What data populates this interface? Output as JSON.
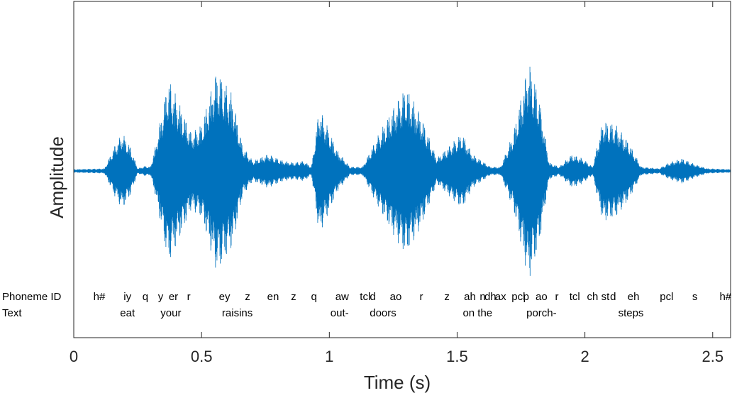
{
  "chart_data": {
    "type": "line",
    "xlabel": "Time (s)",
    "ylabel": "Amplitude",
    "xlim": [
      0,
      2.57
    ],
    "ylim": [
      -1,
      1
    ],
    "grid": false,
    "x_ticks": [
      {
        "value": 0,
        "label": "0"
      },
      {
        "value": 0.5,
        "label": "0.5"
      },
      {
        "value": 1,
        "label": "1"
      },
      {
        "value": 1.5,
        "label": "1.5"
      },
      {
        "value": 2,
        "label": "2"
      },
      {
        "value": 2.5,
        "label": "2.5"
      }
    ],
    "series": [
      {
        "color": "#0072BD",
        "envelope": [
          {
            "t": 0.0,
            "a": 0.02
          },
          {
            "t": 0.12,
            "a": 0.03
          },
          {
            "t": 0.16,
            "a": 0.3
          },
          {
            "t": 0.19,
            "a": 0.45
          },
          {
            "t": 0.22,
            "a": 0.3
          },
          {
            "t": 0.25,
            "a": 0.03
          },
          {
            "t": 0.28,
            "a": 0.06
          },
          {
            "t": 0.3,
            "a": 0.05
          },
          {
            "t": 0.32,
            "a": 0.3
          },
          {
            "t": 0.37,
            "a": 1.1
          },
          {
            "t": 0.42,
            "a": 0.75
          },
          {
            "t": 0.46,
            "a": 0.45
          },
          {
            "t": 0.5,
            "a": 0.55
          },
          {
            "t": 0.56,
            "a": 1.2
          },
          {
            "t": 0.62,
            "a": 0.9
          },
          {
            "t": 0.66,
            "a": 0.3
          },
          {
            "t": 0.7,
            "a": 0.12
          },
          {
            "t": 0.76,
            "a": 0.2
          },
          {
            "t": 0.82,
            "a": 0.12
          },
          {
            "t": 0.86,
            "a": 0.1
          },
          {
            "t": 0.9,
            "a": 0.12
          },
          {
            "t": 0.93,
            "a": 0.05
          },
          {
            "t": 0.96,
            "a": 0.75
          },
          {
            "t": 0.99,
            "a": 0.55
          },
          {
            "t": 1.03,
            "a": 0.25
          },
          {
            "t": 1.08,
            "a": 0.05
          },
          {
            "t": 1.13,
            "a": 0.05
          },
          {
            "t": 1.17,
            "a": 0.3
          },
          {
            "t": 1.24,
            "a": 0.7
          },
          {
            "t": 1.3,
            "a": 1.0
          },
          {
            "t": 1.36,
            "a": 0.65
          },
          {
            "t": 1.42,
            "a": 0.15
          },
          {
            "t": 1.47,
            "a": 0.3
          },
          {
            "t": 1.52,
            "a": 0.45
          },
          {
            "t": 1.56,
            "a": 0.2
          },
          {
            "t": 1.63,
            "a": 0.05
          },
          {
            "t": 1.67,
            "a": 0.05
          },
          {
            "t": 1.72,
            "a": 0.45
          },
          {
            "t": 1.78,
            "a": 1.3
          },
          {
            "t": 1.82,
            "a": 0.9
          },
          {
            "t": 1.86,
            "a": 0.1
          },
          {
            "t": 1.9,
            "a": 0.05
          },
          {
            "t": 1.95,
            "a": 0.2
          },
          {
            "t": 1.99,
            "a": 0.15
          },
          {
            "t": 2.03,
            "a": 0.05
          },
          {
            "t": 2.07,
            "a": 0.6
          },
          {
            "t": 2.12,
            "a": 0.55
          },
          {
            "t": 2.17,
            "a": 0.35
          },
          {
            "t": 2.22,
            "a": 0.05
          },
          {
            "t": 2.29,
            "a": 0.03
          },
          {
            "t": 2.33,
            "a": 0.1
          },
          {
            "t": 2.38,
            "a": 0.15
          },
          {
            "t": 2.43,
            "a": 0.08
          },
          {
            "t": 2.48,
            "a": 0.03
          },
          {
            "t": 2.57,
            "a": 0.02
          }
        ]
      }
    ],
    "annotations": {
      "rows": [
        {
          "key": "phoneme",
          "label": "Phoneme ID"
        },
        {
          "key": "text",
          "label": "Text"
        }
      ],
      "phonemes": [
        {
          "x": 0.1,
          "label": "h#"
        },
        {
          "x": 0.21,
          "label": "iy"
        },
        {
          "x": 0.28,
          "label": "q"
        },
        {
          "x": 0.34,
          "label": "y"
        },
        {
          "x": 0.39,
          "label": "er"
        },
        {
          "x": 0.45,
          "label": "r"
        },
        {
          "x": 0.59,
          "label": "ey"
        },
        {
          "x": 0.68,
          "label": "z"
        },
        {
          "x": 0.78,
          "label": "en"
        },
        {
          "x": 0.86,
          "label": "z"
        },
        {
          "x": 0.94,
          "label": "q"
        },
        {
          "x": 1.05,
          "label": "aw"
        },
        {
          "x": 1.14,
          "label": "tcl"
        },
        {
          "x": 1.17,
          "label": "d"
        },
        {
          "x": 1.26,
          "label": "ao"
        },
        {
          "x": 1.36,
          "label": "r"
        },
        {
          "x": 1.46,
          "label": "z"
        },
        {
          "x": 1.55,
          "label": "ah"
        },
        {
          "x": 1.6,
          "label": "n"
        },
        {
          "x": 1.63,
          "label": "dh"
        },
        {
          "x": 1.67,
          "label": "ax"
        },
        {
          "x": 1.74,
          "label": "pcl"
        },
        {
          "x": 1.77,
          "label": "p"
        },
        {
          "x": 1.83,
          "label": "ao"
        },
        {
          "x": 1.89,
          "label": "r"
        },
        {
          "x": 1.96,
          "label": "tcl"
        },
        {
          "x": 2.03,
          "label": "ch"
        },
        {
          "x": 2.08,
          "label": "st"
        },
        {
          "x": 2.11,
          "label": "d"
        },
        {
          "x": 2.19,
          "label": "eh"
        },
        {
          "x": 2.32,
          "label": "pcl"
        },
        {
          "x": 2.43,
          "label": "s"
        },
        {
          "x": 2.55,
          "label": "h#"
        }
      ],
      "words": [
        {
          "x": 0.21,
          "label": "eat"
        },
        {
          "x": 0.38,
          "label": "your"
        },
        {
          "x": 0.64,
          "label": "raisins"
        },
        {
          "x": 1.04,
          "label": "out-"
        },
        {
          "x": 1.21,
          "label": "doors"
        },
        {
          "x": 1.58,
          "label": "on the"
        },
        {
          "x": 1.83,
          "label": "porch-"
        },
        {
          "x": 2.18,
          "label": "steps"
        }
      ]
    }
  }
}
